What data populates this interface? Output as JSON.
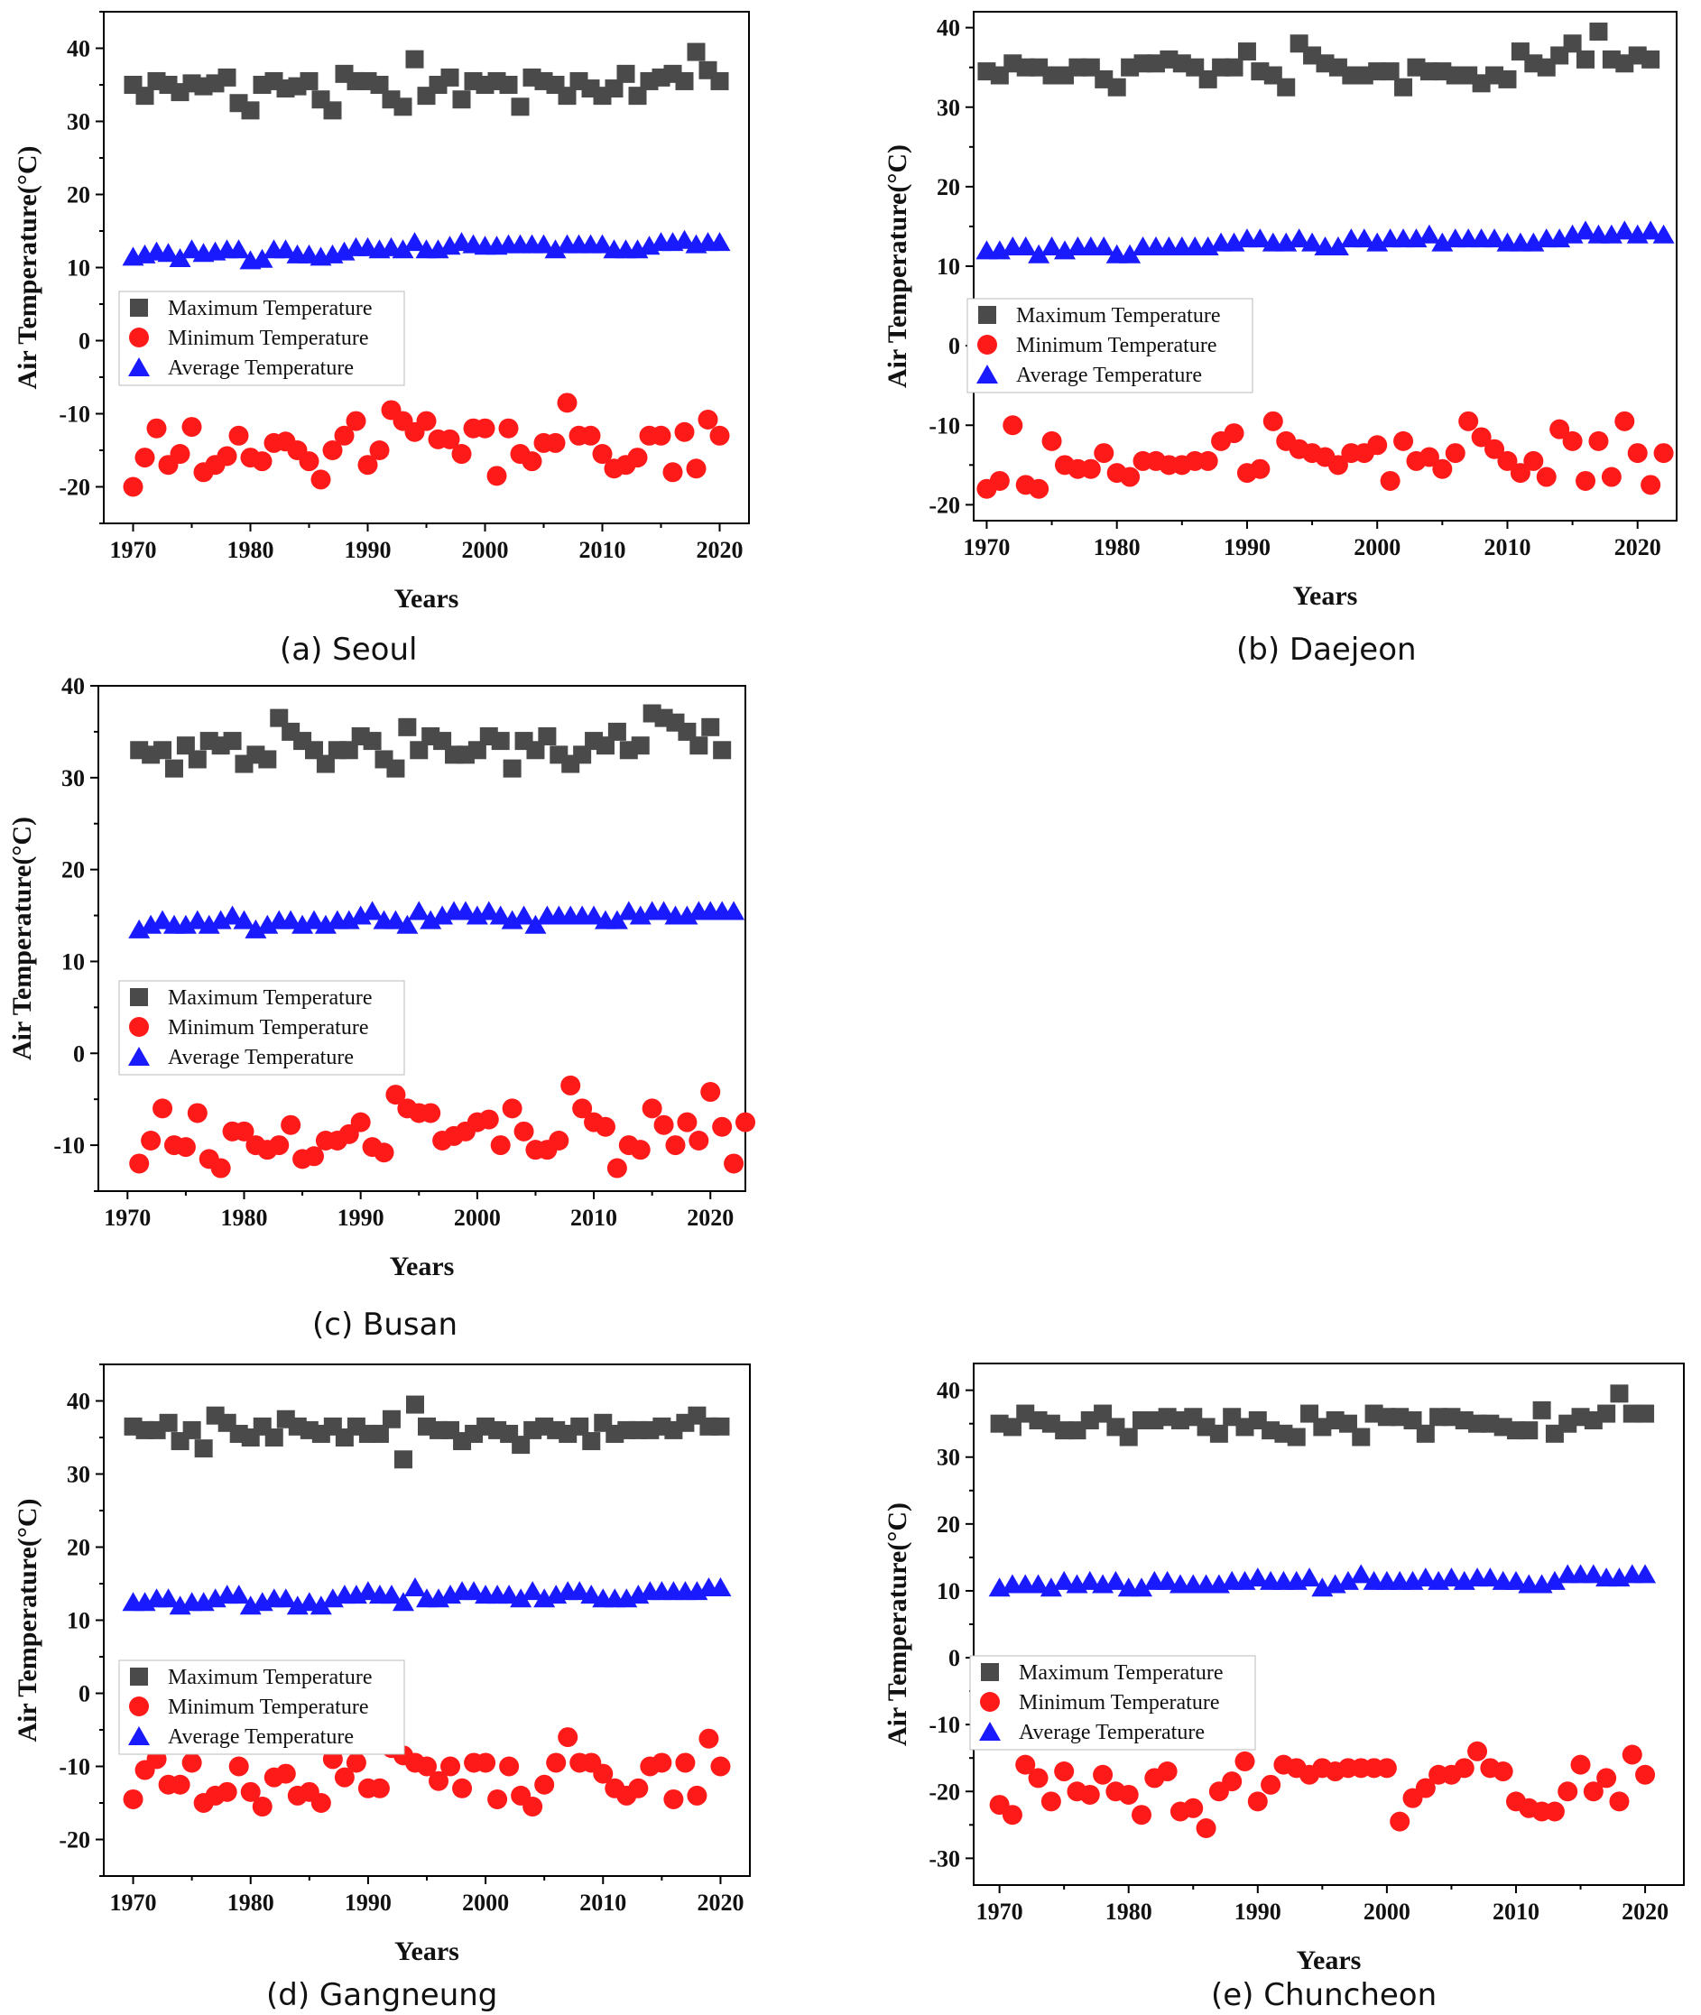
{
  "colors": {
    "max": "#4a4a4a",
    "min": "#ff1a1a",
    "avg": "#1a1aff",
    "axis": "#000000"
  },
  "chart_data": [
    {
      "type": "scatter",
      "caption": "(a) Seoul",
      "xlabel": "Years",
      "ylabel": "Air Temperature(°C)",
      "xlim": [
        1967.5,
        2022.5
      ],
      "ylim": [
        -25,
        45
      ],
      "xticks": [
        1970,
        1980,
        1990,
        2000,
        2010,
        2020
      ],
      "yticks": [
        -20,
        -10,
        0,
        10,
        20,
        30,
        40
      ],
      "x_start": 1970,
      "legend": {
        "position": "left-middle",
        "entries": [
          "Maximum Temperature",
          "Minimum Temperature",
          "Average Temperature"
        ]
      },
      "series": [
        {
          "name": "Maximum Temperature",
          "marker": "square",
          "values": [
            35,
            33.5,
            35.5,
            35,
            34,
            35.2,
            34.8,
            35.2,
            36,
            32.5,
            31.5,
            35,
            35.5,
            34.5,
            34.8,
            35.5,
            33,
            31.5,
            36.5,
            35.5,
            35.5,
            35,
            33,
            32,
            38.5,
            33.5,
            35,
            36,
            33,
            35.5,
            35,
            35.5,
            35,
            32,
            36,
            35.5,
            35,
            33.5,
            35.5,
            34.5,
            33.5,
            34.5,
            36.5,
            33.5,
            35.5,
            36,
            36.5,
            35.5,
            39.5,
            37,
            35.5
          ]
        },
        {
          "name": "Minimum Temperature",
          "marker": "circle",
          "values": [
            -20,
            -16,
            -12,
            -17,
            -15.5,
            -11.8,
            -18,
            -17,
            -15.8,
            -13,
            -16,
            -16.5,
            -14,
            -13.8,
            -15,
            -16.5,
            -19,
            -15,
            -13,
            -11,
            -17,
            -15,
            -9.5,
            -11,
            -12.5,
            -11,
            -13.5,
            -13.5,
            -15.5,
            -12,
            -12,
            -18.5,
            -12,
            -15.5,
            -16.5,
            -14,
            -14,
            -8.5,
            -13,
            -13,
            -15.5,
            -17.5,
            -17,
            -16,
            -13,
            -13,
            -18,
            -12.5,
            -17.5,
            -10.8,
            -13
          ]
        },
        {
          "name": "Average Temperature",
          "marker": "triangle",
          "values": [
            11.5,
            11.8,
            12.2,
            12,
            11.3,
            12.5,
            12,
            12.2,
            12.5,
            12.5,
            11,
            11.2,
            12.5,
            12.5,
            11.8,
            11.8,
            11.5,
            11.8,
            12.2,
            12.8,
            12.8,
            12.5,
            12.8,
            12.5,
            13.5,
            12.5,
            12.5,
            13,
            13.5,
            13.2,
            13,
            13,
            13.2,
            13.2,
            13.2,
            13.2,
            12.5,
            13.2,
            13.2,
            13.2,
            13.2,
            12.5,
            12.5,
            12.5,
            13,
            13.5,
            13.5,
            13.8,
            13.2,
            13.5,
            13.5
          ]
        }
      ]
    },
    {
      "type": "scatter",
      "caption": "(b) Daejeon",
      "xlabel": "Years",
      "ylabel": "Air Temperature(°C)",
      "xlim": [
        1969,
        2023
      ],
      "ylim": [
        -22,
        42
      ],
      "xticks": [
        1970,
        1980,
        1990,
        2000,
        2010,
        2020
      ],
      "yticks": [
        -20,
        -10,
        0,
        10,
        20,
        30,
        40
      ],
      "x_start": 1970,
      "legend": {
        "position": "left-middle",
        "entries": [
          "Maximum Temperature",
          "Minimum Temperature",
          "Average Temperature"
        ]
      },
      "series": [
        {
          "name": "Maximum Temperature",
          "marker": "square",
          "values": [
            34.5,
            34,
            35.5,
            35,
            35,
            34,
            34,
            35,
            35,
            33.5,
            32.5,
            35,
            35.5,
            35.5,
            36,
            35.5,
            35,
            33.5,
            35,
            35,
            37,
            34.5,
            34,
            32.5,
            38,
            36.5,
            35.5,
            35,
            34,
            34,
            34.5,
            34.5,
            32.5,
            35,
            34.5,
            34.5,
            34,
            34,
            33,
            34,
            33.5,
            37,
            35.5,
            35,
            36.5,
            38,
            36,
            39.5,
            36,
            35.5,
            36.5,
            36
          ]
        },
        {
          "name": "Minimum Temperature",
          "marker": "circle",
          "values": [
            -18,
            -17,
            -10,
            -17.5,
            -18,
            -12,
            -15,
            -15.5,
            -15.5,
            -13.5,
            -16,
            -16.5,
            -14.5,
            -14.5,
            -15,
            -15,
            -14.5,
            -14.5,
            -12,
            -11,
            -16,
            -15.5,
            -9.5,
            -12,
            -13,
            -13.5,
            -14,
            -15,
            -13.5,
            -13.5,
            -12.5,
            -17,
            -12,
            -14.5,
            -14,
            -15.5,
            -13.5,
            -9.5,
            -11.5,
            -13,
            -14.5,
            -16,
            -14.5,
            -16.5,
            -10.5,
            -12,
            -17,
            -12,
            -16.5,
            -9.5,
            -13.5,
            -17.5,
            -13.5
          ]
        },
        {
          "name": "Average Temperature",
          "marker": "triangle",
          "values": [
            12,
            12,
            12.5,
            12.5,
            11.5,
            12.5,
            12,
            12.5,
            12.5,
            12.5,
            11.5,
            11.5,
            12.5,
            12.5,
            12.5,
            12.5,
            12.5,
            12.5,
            13,
            13,
            13.5,
            13.5,
            13,
            13,
            13.5,
            13,
            12.5,
            12.5,
            13.5,
            13.5,
            13,
            13.5,
            13.5,
            13.5,
            14,
            13,
            13.5,
            13.5,
            13.5,
            13.5,
            13,
            13,
            13,
            13.5,
            13.5,
            14,
            14.5,
            14,
            14,
            14.5,
            14,
            14.5,
            14
          ]
        }
      ]
    },
    {
      "type": "scatter",
      "caption": "(c) Busan",
      "xlabel": "Years",
      "ylabel": "Air Temperature(°C)",
      "xlim": [
        1967.5,
        2023
      ],
      "ylim": [
        -15,
        40
      ],
      "xticks": [
        1970,
        1980,
        1990,
        2000,
        2010,
        2020
      ],
      "yticks": [
        -10,
        0,
        10,
        20,
        30,
        40
      ],
      "x_start": 1971,
      "legend": {
        "position": "left-middle",
        "entries": [
          "Maximum Temperature",
          "Minimum Temperature",
          "Average Temperature"
        ]
      },
      "series": [
        {
          "name": "Maximum Temperature",
          "marker": "square",
          "values": [
            33,
            32.5,
            33,
            31,
            33.5,
            32,
            34,
            33.5,
            34,
            31.5,
            32.5,
            32,
            36.5,
            35,
            34,
            33,
            31.5,
            33,
            33,
            34.5,
            34,
            32,
            31,
            35.5,
            33,
            34.5,
            34,
            32.5,
            32.5,
            33,
            34.5,
            34,
            31,
            34,
            33,
            34.5,
            32.5,
            31.5,
            32.5,
            34,
            33.5,
            35,
            33,
            33.5,
            37,
            36.5,
            36,
            35,
            33.5,
            35.5,
            33
          ]
        },
        {
          "name": "Average Temperature",
          "marker": "triangle",
          "values": [
            13.5,
            14,
            14.5,
            14,
            14,
            14.5,
            14,
            14.5,
            15,
            14.5,
            13.5,
            14,
            14.5,
            14.5,
            14,
            14.5,
            14,
            14.5,
            14.5,
            15,
            15.5,
            14.5,
            14.5,
            14,
            15.5,
            14.5,
            15,
            15.5,
            15.5,
            15,
            15.5,
            15,
            14.5,
            15,
            14,
            15,
            15,
            15,
            15,
            15,
            14.5,
            14.5,
            15.5,
            15,
            15.5,
            15.5,
            15,
            15,
            15.5,
            15.5,
            15.5,
            15.5
          ]
        },
        {
          "name": "Minimum Temperature",
          "marker": "circle",
          "values": [
            -12,
            -9.5,
            -6,
            -10,
            -10.2,
            -6.5,
            -11.5,
            -12.5,
            -8.5,
            -8.5,
            -10,
            -10.5,
            -10,
            -7.8,
            -11.5,
            -11.2,
            -9.5,
            -9.5,
            -8.8,
            -7.5,
            -10.2,
            -10.8,
            -4.5,
            -6,
            -6.5,
            -6.5,
            -9.5,
            -9,
            -8.5,
            -7.5,
            -7.2,
            -10,
            -6,
            -8.5,
            -10.5,
            -10.5,
            -9.5,
            -3.5,
            -6,
            -7.5,
            -8,
            -12.5,
            -10,
            -10.5,
            -6,
            -7.8,
            -10,
            -7.5,
            -9.5,
            -4.2,
            -8,
            -12,
            -7.5
          ]
        }
      ]
    },
    {
      "type": "scatter",
      "caption": "(d) Gangneung",
      "xlabel": "Years",
      "ylabel": "Air Temperature(°C)",
      "xlim": [
        1967.5,
        2022.5
      ],
      "ylim": [
        -25,
        45
      ],
      "xticks": [
        1970,
        1980,
        1990,
        2000,
        2010,
        2020
      ],
      "yticks": [
        -20,
        -10,
        0,
        10,
        20,
        30,
        40
      ],
      "x_start": 1970,
      "legend": {
        "position": "left-middle",
        "entries": [
          "Maximum Temperature",
          "Minimum Temperature",
          "Average Temperature"
        ]
      },
      "series": [
        {
          "name": "Maximum Temperature",
          "marker": "square",
          "values": [
            36.5,
            36,
            36,
            37,
            34.5,
            36,
            33.5,
            38,
            37,
            35.5,
            35,
            36.5,
            35,
            37.5,
            36.5,
            36,
            35.5,
            36.5,
            35,
            36.5,
            35.5,
            35.5,
            37.5,
            32,
            39.5,
            36.5,
            36,
            36,
            34.5,
            35.5,
            36.5,
            36,
            35.5,
            34,
            36,
            36.5,
            36,
            35.5,
            36.5,
            34.5,
            37,
            35.5,
            36,
            36,
            36,
            36.5,
            36,
            37,
            38,
            36.5,
            36.5
          ]
        },
        {
          "name": "Minimum Temperature",
          "marker": "circle",
          "values": [
            -14.5,
            -10.5,
            -9,
            -12.5,
            -12.5,
            -9.5,
            -15,
            -14,
            -13.5,
            -10,
            -13.5,
            -15.5,
            -11.5,
            -11,
            -14,
            -13.5,
            -15,
            -9,
            -11.5,
            -9.5,
            -13,
            -13,
            -7.5,
            -8.5,
            -9.5,
            -10,
            -12,
            -10,
            -13,
            -9.5,
            -9.5,
            -14.5,
            -10,
            -14,
            -15.5,
            -12.5,
            -9.5,
            -6,
            -9.5,
            -9.5,
            -11,
            -13,
            -14,
            -13,
            -10,
            -9.5,
            -14.5,
            -9.5,
            -14,
            -6.2,
            -10
          ]
        },
        {
          "name": "Average Temperature",
          "marker": "triangle",
          "values": [
            12.5,
            12.5,
            13,
            13,
            12,
            12.5,
            12.5,
            13,
            13.5,
            13.5,
            12,
            12.5,
            13,
            13,
            12,
            12.5,
            12,
            13,
            13.5,
            13.5,
            14,
            13.5,
            13.5,
            12.5,
            14.5,
            13,
            13,
            13.5,
            14,
            14,
            13.5,
            13.5,
            13.5,
            13,
            14,
            13,
            13.5,
            14,
            14,
            13.5,
            13,
            13,
            13,
            13.5,
            14,
            14,
            14,
            14,
            14,
            14.5,
            14.5
          ]
        }
      ]
    },
    {
      "type": "scatter",
      "caption": "(e) Chuncheon",
      "xlabel": "Years",
      "ylabel": "Air Temperature(°C)",
      "xlim": [
        1968,
        2023
      ],
      "ylim": [
        -34,
        44
      ],
      "xticks": [
        1970,
        1980,
        1990,
        2000,
        2010,
        2020
      ],
      "yticks": [
        -30,
        -20,
        -10,
        0,
        10,
        20,
        30,
        40
      ],
      "x_start": 1970,
      "legend": {
        "position": "left-middle",
        "entries": [
          "Maximum Temperature",
          "Minimum Temperature",
          "Average Temperature"
        ]
      },
      "series": [
        {
          "name": "Maximum Temperature",
          "marker": "square",
          "values": [
            35,
            34.5,
            36.5,
            35.5,
            35,
            34,
            34,
            35.5,
            36.5,
            34.5,
            33,
            35.5,
            35.5,
            36,
            35.5,
            36,
            34.5,
            33.5,
            36,
            34.5,
            35.5,
            34,
            33.5,
            33,
            36.5,
            34.5,
            35.5,
            35,
            33,
            36.5,
            36,
            36,
            35.5,
            33.5,
            36,
            36,
            35.5,
            35,
            35,
            34.5,
            34,
            34,
            37,
            33.5,
            35,
            36,
            35.5,
            36.5,
            39.5,
            36.5,
            36.5
          ]
        },
        {
          "name": "Minimum Temperature",
          "marker": "circle",
          "values": [
            -22,
            -23.5,
            -16,
            -18,
            -21.5,
            -17,
            -20,
            -20.5,
            -17.5,
            -20,
            -20.5,
            -23.5,
            -18,
            -17,
            -23,
            -22.5,
            -25.5,
            -20,
            -18.5,
            -15.5,
            -21.5,
            -19,
            -16,
            -16.5,
            -17.5,
            -16.5,
            -17,
            -16.5,
            -16.5,
            -16.5,
            -16.5,
            -24.5,
            -21,
            -19.5,
            -17.5,
            -17.5,
            -16.5,
            -14,
            -16.5,
            -17,
            -21.5,
            -22.5,
            -23,
            -23,
            -20,
            -16,
            -20,
            -18,
            -21.5,
            -14.5,
            -17.5
          ]
        },
        {
          "name": "Average Temperature",
          "marker": "triangle",
          "values": [
            10.5,
            11,
            11,
            11,
            10.5,
            11.5,
            11,
            11.5,
            11,
            11.5,
            10.5,
            10.5,
            11.5,
            11.5,
            11,
            11,
            11,
            11,
            11.5,
            11.5,
            12,
            11.5,
            11.5,
            11.5,
            12,
            10.5,
            11,
            11.5,
            12.5,
            11.5,
            11.5,
            11.5,
            11.5,
            12,
            11.5,
            12,
            11.5,
            12,
            12,
            11.5,
            11.5,
            11,
            11,
            11.5,
            12.5,
            12.5,
            12.5,
            12,
            12,
            12.5,
            12.5
          ]
        }
      ]
    }
  ]
}
